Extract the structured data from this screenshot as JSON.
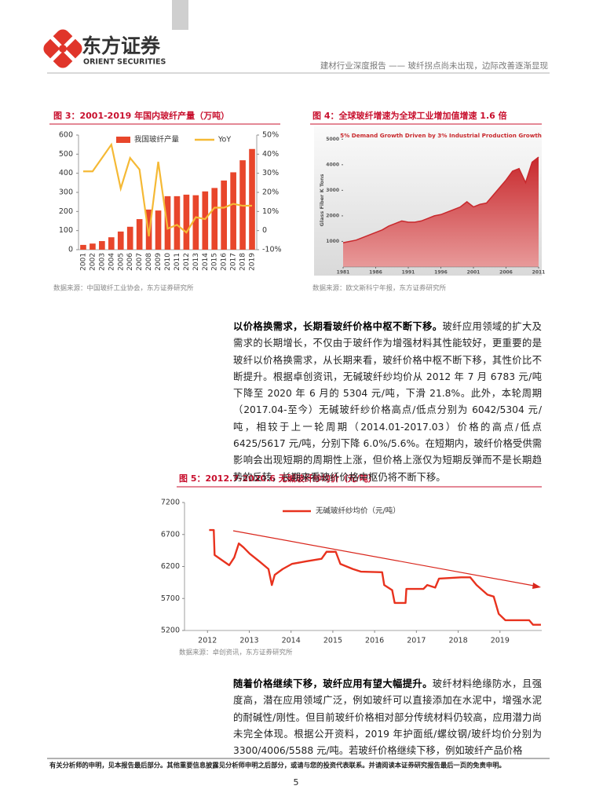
{
  "header": {
    "logo_cn": "东方证券",
    "logo_en": "ORIENT SECURITIES",
    "report": "建材行业深度报告 —— 玻纤拐点尚未出现，边际改善逐渐显现"
  },
  "figures": [
    {
      "caption": "图 3：2001-2019 年国内玻纤产量（万吨）",
      "source": "数据来源：中国玻纤工业协会，东方证券研究所",
      "chart_data": {
        "type": "bar",
        "categories": [
          "2001",
          "2002",
          "2003",
          "2004",
          "2005",
          "2006",
          "2007",
          "2008",
          "2009",
          "2010",
          "2011",
          "2012",
          "2013",
          "2014",
          "2015",
          "2016",
          "2017",
          "2018",
          "2019"
        ],
        "series": [
          {
            "name": "我国玻纤产量",
            "color": "#e8462b",
            "values": [
              25,
              32,
              45,
              65,
              95,
              120,
              160,
              210,
              205,
              280,
              280,
              288,
              285,
              305,
              323,
              362,
              405,
              468,
              527
            ]
          },
          {
            "name": "YoY",
            "color": "#f5b935",
            "type": "line",
            "axis": "y2",
            "values": [
              31,
              31,
              38,
              45,
              22,
              38,
              32,
              -3,
              36,
              1,
              3,
              -1,
              7,
              6,
              12,
              12,
              14,
              13,
              13
            ]
          }
        ],
        "ylim": [
          0,
          600
        ],
        "yticks": [
          0,
          100,
          200,
          300,
          400,
          500,
          600
        ],
        "y2lim": [
          -10,
          50
        ],
        "y2ticks": [
          {
            "value": -10,
            "label": "-10%"
          },
          0,
          {
            "value": 10,
            "label": "10%"
          },
          {
            "value": 20,
            "label": "20%"
          },
          {
            "value": 30,
            "label": "30%"
          },
          {
            "value": 40,
            "label": "40%"
          },
          {
            "value": 50,
            "label": "50%"
          }
        ]
      }
    },
    {
      "caption": "图 4：全球玻纤增速为全球工业增加值增速 1.6 倍",
      "source": "数据来源：欧文斯科宁年报，东方证券研究所",
      "chart_data": {
        "type": "area",
        "title": "5% Demand Growth Driven by 3% Industrial Production Growth",
        "y_label": "Glass Fiber K Tons",
        "color": "#c8282c",
        "x": [
          1981,
          1982,
          1983,
          1984,
          1985,
          1986,
          1987,
          1988,
          1989,
          1990,
          1991,
          1992,
          1993,
          1994,
          1995,
          1996,
          1997,
          1998,
          1999,
          2000,
          2001,
          2002,
          2003,
          2004,
          2005,
          2006,
          2007,
          2008,
          2009,
          2010,
          2011
        ],
        "values": [
          950,
          1000,
          1050,
          1150,
          1250,
          1350,
          1450,
          1600,
          1700,
          1800,
          1750,
          1750,
          1800,
          1900,
          2000,
          2050,
          2150,
          2250,
          2350,
          2550,
          2350,
          2450,
          2500,
          2800,
          3100,
          3400,
          3750,
          3850,
          3300,
          4100,
          4300
        ],
        "xlim": [
          1981,
          2011
        ],
        "xticks": [
          1981,
          1986,
          1991,
          1996,
          2001,
          2006,
          2011
        ],
        "ylim": [
          0,
          5500
        ],
        "yticks": [
          1000,
          2000,
          3000,
          4000,
          5000
        ]
      }
    },
    {
      "caption": "图 5：2012.7-2020.6 无碱玻纤纱均价（元/吨）",
      "source": "数据来源：卓创资讯，东方证券研究所",
      "chart_data": {
        "type": "line",
        "x": [
          2012.04,
          2012.15,
          2012.17,
          2012.52,
          2012.64,
          2012.75,
          2012.86,
          2013.01,
          2013.24,
          2013.46,
          2013.54,
          2013.61,
          2013.8,
          2014.02,
          2014.36,
          2014.73,
          2014.85,
          2015.07,
          2015.18,
          2015.48,
          2015.67,
          2016.18,
          2016.23,
          2016.42,
          2016.48,
          2016.74,
          2016.76,
          2017.17,
          2017.26,
          2017.45,
          2017.54,
          2018.07,
          2018.29,
          2018.44,
          2018.7,
          2018.85,
          2018.97,
          2019.13,
          2019.7,
          2019.79,
          2019.98
        ],
        "series": [
          {
            "name": "无碱玻纤纱均价（元/吨）",
            "color": "#e8321e",
            "values": [
              6770,
              6770,
              6380,
              6220,
              6340,
              6560,
              6500,
              6400,
              6280,
              6160,
              5910,
              6070,
              6160,
              6240,
              6280,
              6320,
              6430,
              6430,
              6240,
              6160,
              6120,
              6110,
              5910,
              5830,
              5630,
              5630,
              5850,
              5850,
              5910,
              5870,
              6010,
              6030,
              6030,
              5910,
              5760,
              5730,
              5460,
              5360,
              5360,
              5290,
              5290
            ]
          }
        ],
        "xlim": [
          2011.45,
          2020
        ],
        "xticks": [
          2012,
          2013,
          2014,
          2015,
          2016,
          2017,
          2018,
          2019
        ],
        "ylim": [
          5200,
          7200
        ],
        "yticks": [
          5200,
          5700,
          6200,
          6700,
          7200
        ]
      }
    }
  ],
  "paragraphs": [
    {
      "lead": "以价格换需求，长期看玻纤价格中枢不断下移。",
      "text": "玻纤应用领域的扩大及需求的长期增长，不仅由于玻纤作为增强材料其性能较好，更重要的是玻纤以价格换需求，从长期来看，玻纤价格中枢不断下移，其性价比不断提升。根据卓创资讯，无碱玻纤纱均价从 2012 年 7 月 6783 元/吨下降至 2020 年 6 月的 5304 元/吨，下滑 21.8%。此外，本轮周期（2017.04-至今）无碱玻纤纱价格高点/低点分别为 6042/5304 元/吨，相较于上一轮周期（2014.01-2017.03）价格的高点/低点 6425/5617 元/吨，分别下降 6.0%/5.6%。在短期内，玻纤价格受供需影响会出现短期的周期性上涨，但价格上涨仅为短期反弹而不是长期趋势的反转，长期来看玻纤价格中枢仍将不断下移。"
    },
    {
      "lead": "随着价格继续下移，玻纤应用有望大幅提升。",
      "text": "玻纤材料绝缘防水，且强度高，潜在应用领域广泛，例如玻纤可以直接添加在水泥中，增强水泥的耐碱性/刚性。但目前玻纤价格相对部分传统材料仍较高，应用潜力尚未完全体现。根据公开资料，2019 年护面纸/螺纹钢/玻纤均价分别为 3300/4006/5588 元/吨。若玻纤价格继续下移，例如玻纤产品价格"
    }
  ],
  "footer": {
    "disclaimer": "有关分析师的申明，见本报告最后部分。其他重要信息披露见分析师申明之后部分，或请与您的投资代表联系。并请阅读本证券研究报告最后一页的免责申明。",
    "page": 5
  }
}
